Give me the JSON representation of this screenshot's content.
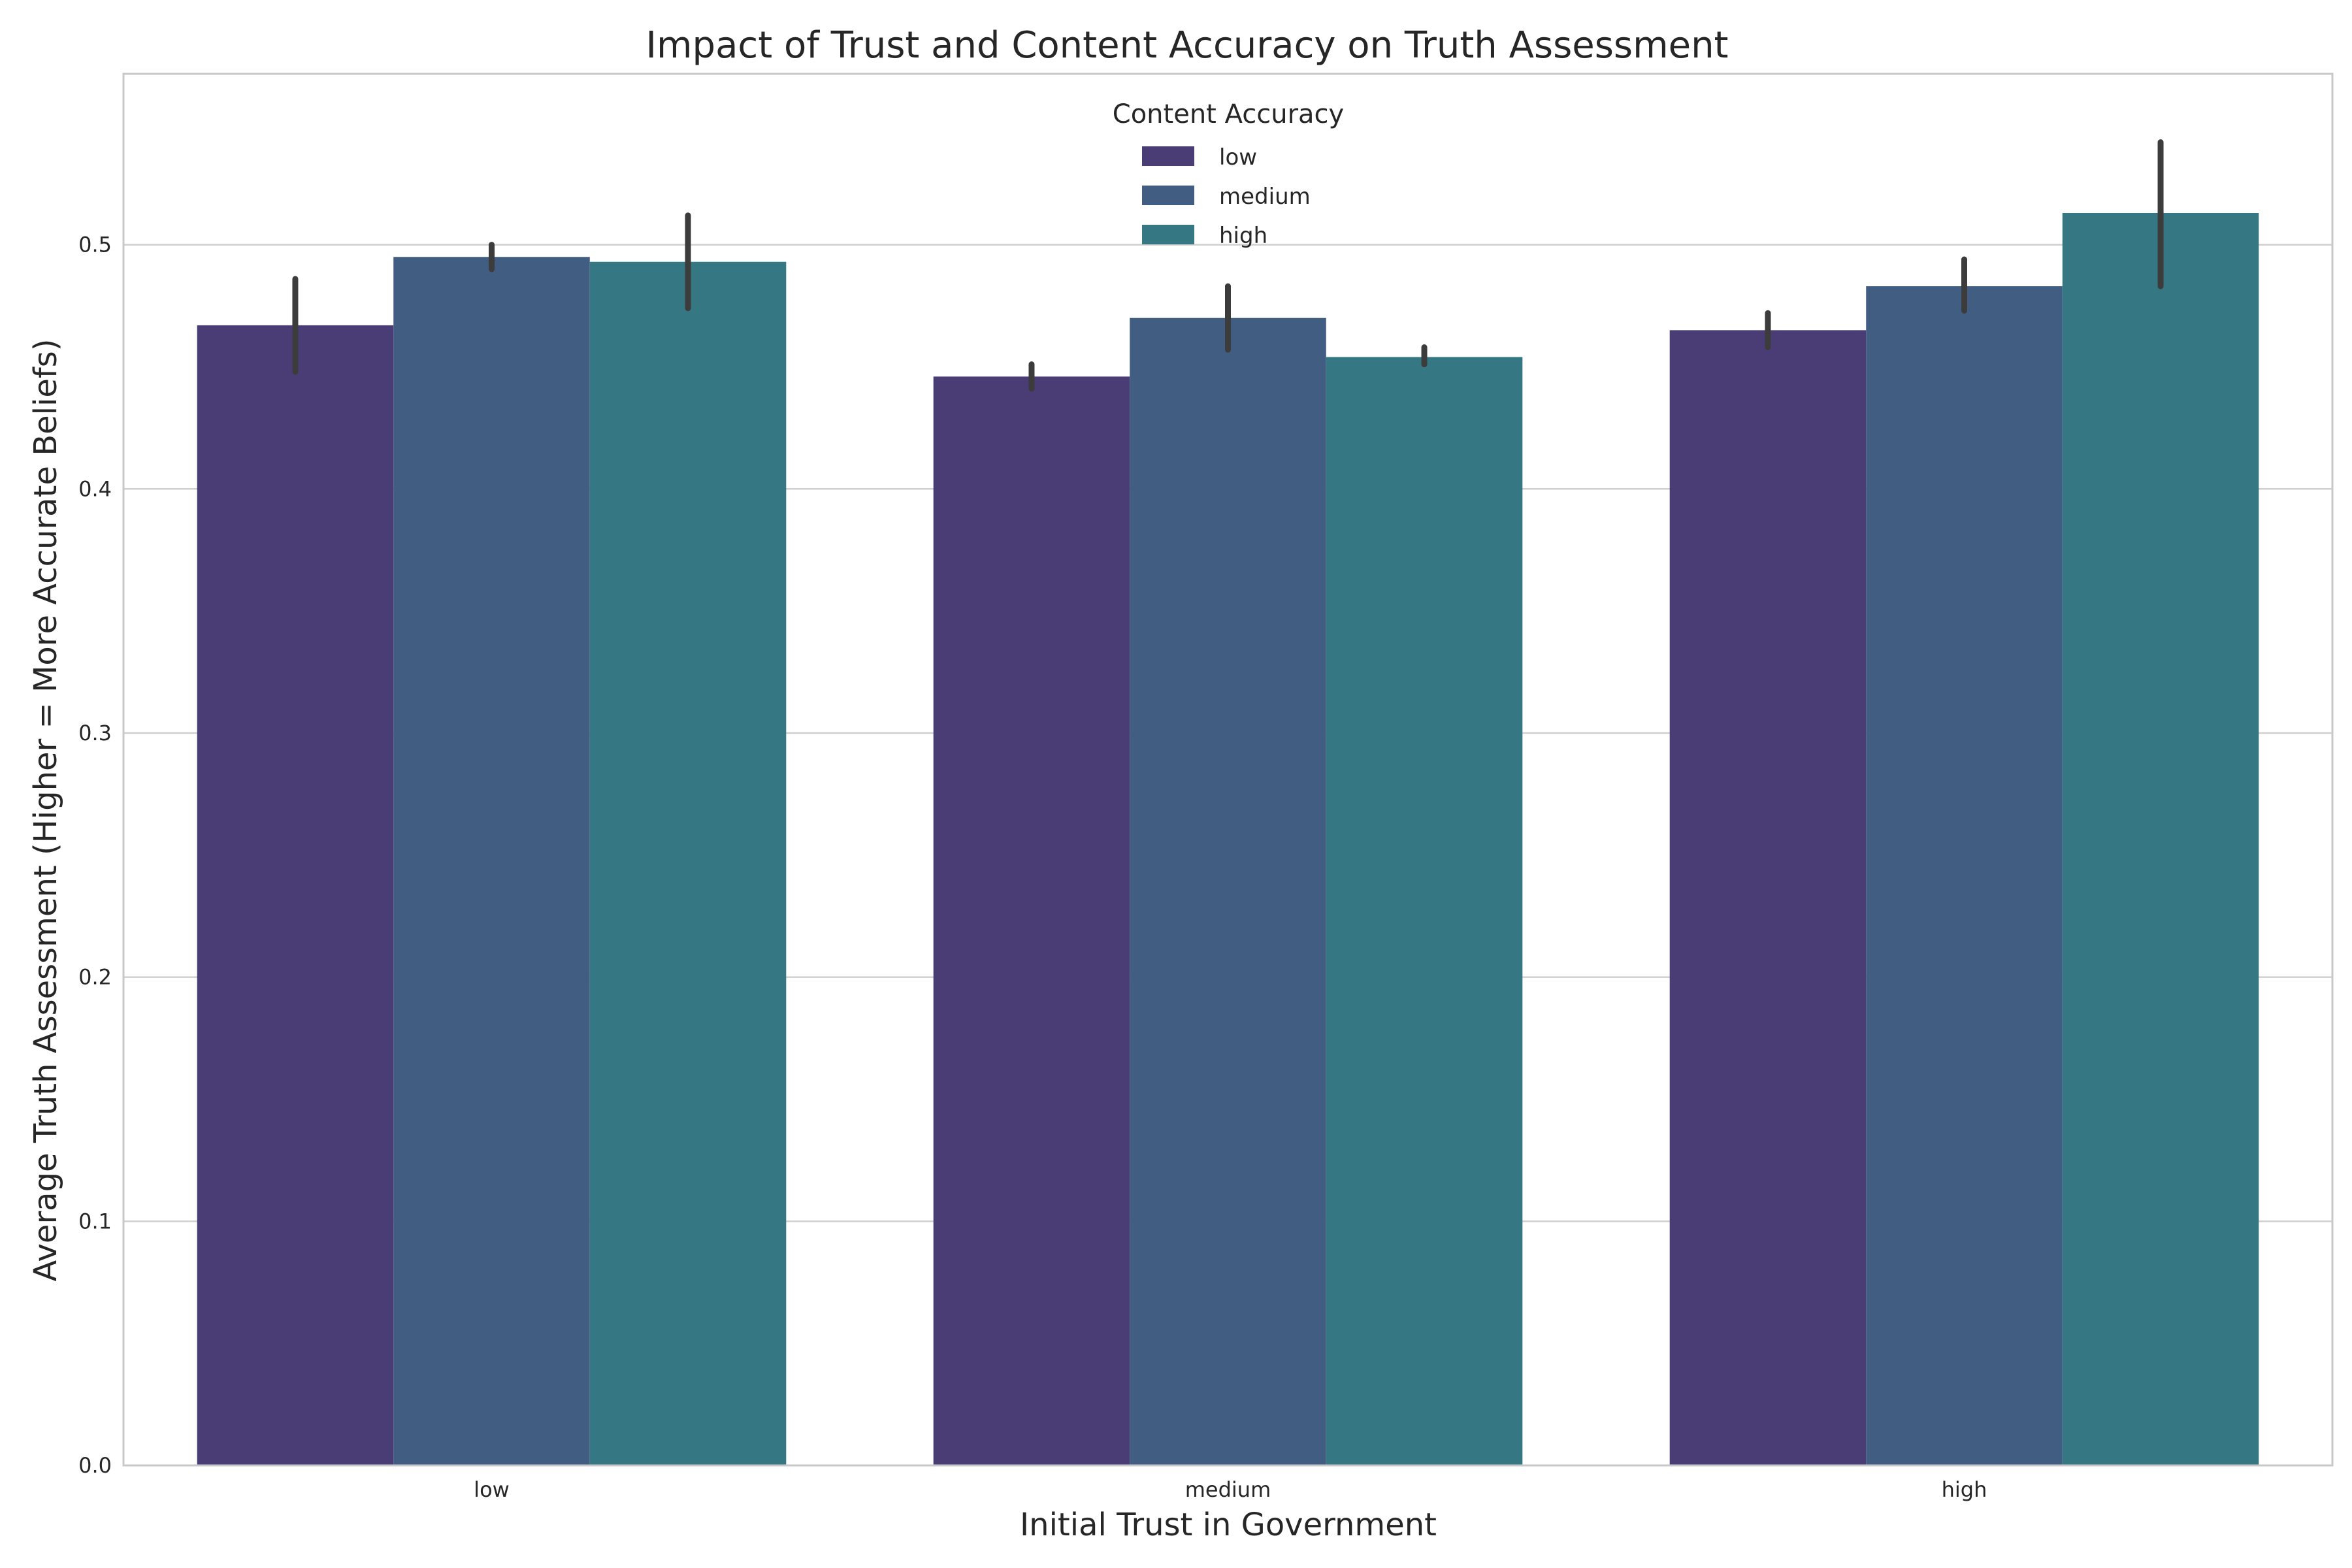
{
  "chart_data": {
    "type": "bar",
    "title": "Impact of Trust and Content Accuracy on Truth Assessment",
    "xlabel": "Initial Trust in Government",
    "ylabel": "Average Truth Assessment (Higher = More Accurate Beliefs)",
    "categories": [
      "low",
      "medium",
      "high"
    ],
    "ylim": [
      0,
      0.57
    ],
    "yticks": [
      0.0,
      0.1,
      0.2,
      0.3,
      0.4,
      0.5
    ],
    "ytick_labels": [
      "0.0",
      "0.1",
      "0.2",
      "0.3",
      "0.4",
      "0.5"
    ],
    "grid": "horizontal",
    "legend": {
      "title": "Content Accuracy",
      "placement": "upper-center"
    },
    "series": [
      {
        "name": "low",
        "color": "#4a3c74",
        "values": [
          0.467,
          0.446,
          0.465
        ],
        "error_low": [
          0.448,
          0.441,
          0.458
        ],
        "error_high": [
          0.486,
          0.451,
          0.472
        ]
      },
      {
        "name": "medium",
        "color": "#415e82",
        "values": [
          0.495,
          0.47,
          0.483
        ],
        "error_low": [
          0.49,
          0.457,
          0.473
        ],
        "error_high": [
          0.5,
          0.483,
          0.494
        ]
      },
      {
        "name": "high",
        "color": "#357782",
        "values": [
          0.493,
          0.454,
          0.513
        ],
        "error_low": [
          0.474,
          0.451,
          0.483
        ],
        "error_high": [
          0.512,
          0.458,
          0.542
        ]
      }
    ]
  }
}
